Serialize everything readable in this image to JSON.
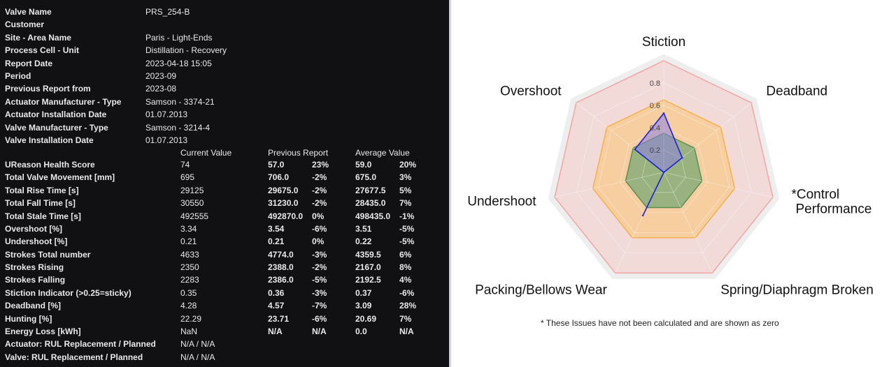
{
  "info": [
    {
      "label": "Valve Name",
      "value": "PRS_254-B"
    },
    {
      "label": "Customer",
      "value": ""
    },
    {
      "label": "Site - Area Name",
      "value": "Paris - Light-Ends"
    },
    {
      "label": "Process Cell - Unit",
      "value": "Distillation - Recovery"
    },
    {
      "label": "Report Date",
      "value": "2023-04-18 15:05"
    },
    {
      "label": "Period",
      "value": "2023-09"
    },
    {
      "label": "Previous Report from",
      "value": "2023-08"
    },
    {
      "label": "Actuator Manufacturer - Type",
      "value": "Samson - 3374-21"
    },
    {
      "label": "Actuator Installation Date",
      "value": "01.07.2013"
    },
    {
      "label": "Valve Manufacturer - Type",
      "value": "Samson - 3214-4"
    },
    {
      "label": "Valve Installation Date",
      "value": "01.07.2013"
    }
  ],
  "table_headers": {
    "current": "Current Value",
    "previous": "Previous Report",
    "average": "Average Value"
  },
  "metrics": [
    {
      "label": "UReason Health Score",
      "current": "74",
      "prev": "57.0",
      "prev_pct": "23%",
      "avg": "59.0",
      "avg_pct": "20%"
    },
    {
      "label": "Total Valve Movement [mm]",
      "current": "695",
      "prev": "706.0",
      "prev_pct": "-2%",
      "avg": "675.0",
      "avg_pct": "3%"
    },
    {
      "label": "Total Rise Time [s]",
      "current": "29125",
      "prev": "29675.0",
      "prev_pct": "-2%",
      "avg": "27677.5",
      "avg_pct": "5%"
    },
    {
      "label": "Total Fall Time [s]",
      "current": "30550",
      "prev": "31230.0",
      "prev_pct": "-2%",
      "avg": "28435.0",
      "avg_pct": "7%"
    },
    {
      "label": "Total Stale Time [s]",
      "current": "492555",
      "prev": "492870.0",
      "prev_pct": "0%",
      "avg": "498435.0",
      "avg_pct": "-1%"
    },
    {
      "label": "Overshoot [%]",
      "current": "3.34",
      "prev": "3.54",
      "prev_pct": "-6%",
      "avg": "3.51",
      "avg_pct": "-5%"
    },
    {
      "label": "Undershoot [%]",
      "current": "0.21",
      "prev": "0.21",
      "prev_pct": "0%",
      "avg": "0.22",
      "avg_pct": "-5%"
    },
    {
      "label": "Strokes Total number",
      "current": "4633",
      "prev": "4774.0",
      "prev_pct": "-3%",
      "avg": "4359.5",
      "avg_pct": "6%"
    },
    {
      "label": "Strokes Rising",
      "current": "2350",
      "prev": "2388.0",
      "prev_pct": "-2%",
      "avg": "2167.0",
      "avg_pct": "8%"
    },
    {
      "label": "Strokes Falling",
      "current": "2283",
      "prev": "2386.0",
      "prev_pct": "-5%",
      "avg": "2192.5",
      "avg_pct": "4%"
    },
    {
      "label": "Stiction Indicator (>0.25=sticky)",
      "current": "0.35",
      "prev": "0.36",
      "prev_pct": "-3%",
      "avg": "0.37",
      "avg_pct": "-6%"
    },
    {
      "label": "Deadband [%]",
      "current": "4.28",
      "prev": "4.57",
      "prev_pct": "-7%",
      "avg": "3.09",
      "avg_pct": "28%"
    },
    {
      "label": "Hunting [%]",
      "current": "22.29",
      "prev": "23.71",
      "prev_pct": "-6%",
      "avg": "20.69",
      "avg_pct": "7%"
    },
    {
      "label": "Energy Loss [kWh]",
      "current": "NaN",
      "prev": "N/A",
      "prev_pct": "N/A",
      "avg": "0.0",
      "avg_pct": "N/A"
    },
    {
      "label": "Actuator: RUL Replacement / Planned",
      "current": "N/A / N/A",
      "prev": "",
      "prev_pct": "",
      "avg": "",
      "avg_pct": ""
    },
    {
      "label": "Valve: RUL Replacement / Planned",
      "current": "N/A / N/A",
      "prev": "",
      "prev_pct": "",
      "avg": "",
      "avg_pct": ""
    }
  ],
  "chart_data": {
    "type": "radar",
    "axes": [
      "Stiction",
      "Deadband",
      "*Control Performance",
      "Spring/Diaphragm Broken",
      "Packing/Bellows Wear",
      "Undershoot",
      "Overshoot"
    ],
    "range": [
      0,
      1
    ],
    "ticks": [
      "0.2",
      "0.4",
      "0.6",
      "0.8"
    ],
    "tick_values": [
      0.2,
      0.4,
      0.6,
      0.8
    ],
    "zones": [
      {
        "max": 1.0,
        "color": "#f6c2bf"
      },
      {
        "max": 0.65,
        "color": "#f7c98c"
      },
      {
        "max": 0.35,
        "color": "#7aa874"
      }
    ],
    "series": [
      {
        "values": [
          0.53,
          0.21,
          0.0,
          0.0,
          0.43,
          0.0,
          0.33
        ],
        "color": "#1f1fd6"
      }
    ]
  },
  "footnote": "* These Issues have not been calculated and are shown as zero"
}
